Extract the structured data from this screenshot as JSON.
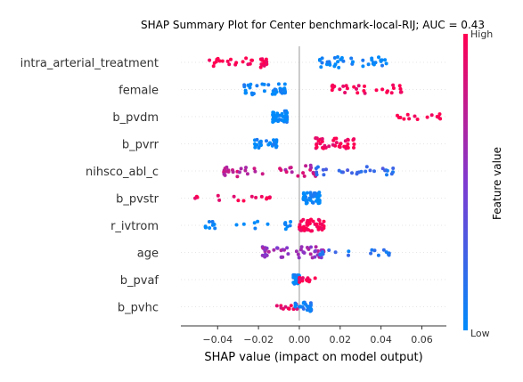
{
  "chart_data": {
    "type": "scatter",
    "title": "SHAP Summary Plot for Center benchmark-local-RIJ; AUC = 0.43",
    "xlabel": "SHAP value (impact on model output)",
    "xlim": [
      -0.058,
      0.072
    ],
    "xticks": [
      -0.04,
      -0.02,
      0.0,
      0.02,
      0.04,
      0.06
    ],
    "xtick_labels": [
      "−0.04",
      "−0.02",
      "0.00",
      "0.02",
      "0.04",
      "0.06"
    ],
    "colorbar": {
      "title": "Feature value",
      "high_label": "High",
      "low_label": "Low",
      "low_color": "#008bfb",
      "mid_color": "#7f3ad0",
      "high_color": "#ff0052"
    },
    "features": [
      {
        "name": "intra_arterial_treatment",
        "clusters": [
          {
            "x_min": -0.044,
            "x_max": -0.016,
            "color": 1.0,
            "count": 34
          },
          {
            "x_min": 0.01,
            "x_max": 0.043,
            "color": 0.0,
            "count": 38
          }
        ]
      },
      {
        "name": "female",
        "clusters": [
          {
            "x_min": -0.027,
            "x_max": -0.007,
            "color": 0.0,
            "count": 40
          },
          {
            "x_min": 0.016,
            "x_max": 0.05,
            "color": 1.0,
            "count": 30
          }
        ]
      },
      {
        "name": "b_pvdm",
        "clusters": [
          {
            "x_min": -0.013,
            "x_max": -0.006,
            "color": 0.0,
            "count": 45
          },
          {
            "x_min": 0.048,
            "x_max": 0.069,
            "color": 1.0,
            "count": 14
          }
        ]
      },
      {
        "name": "b_pvrr",
        "clusters": [
          {
            "x_min": -0.022,
            "x_max": -0.011,
            "color": 0.0,
            "count": 28
          },
          {
            "x_min": 0.008,
            "x_max": 0.027,
            "color": 1.0,
            "count": 40
          }
        ]
      },
      {
        "name": "nihsco_abl_c",
        "clusters": [
          {
            "x_min": -0.037,
            "x_max": 0.008,
            "color": 0.75,
            "count": 40
          },
          {
            "x_min": 0.008,
            "x_max": 0.046,
            "color": 0.2,
            "count": 28
          }
        ]
      },
      {
        "name": "b_pvstr",
        "clusters": [
          {
            "x_min": -0.051,
            "x_max": -0.014,
            "color": 1.0,
            "count": 16
          },
          {
            "x_min": 0.002,
            "x_max": 0.01,
            "color": 0.0,
            "count": 55
          }
        ]
      },
      {
        "name": "r_ivtrom",
        "clusters": [
          {
            "x_min": -0.046,
            "x_max": -0.004,
            "color": 0.0,
            "count": 24
          },
          {
            "x_min": 0.0,
            "x_max": 0.012,
            "color": 1.0,
            "count": 50
          }
        ]
      },
      {
        "name": "age",
        "clusters": [
          {
            "x_min": -0.018,
            "x_max": 0.012,
            "color": 0.6,
            "count": 50
          },
          {
            "x_min": 0.01,
            "x_max": 0.044,
            "color": 0.15,
            "count": 18
          }
        ]
      },
      {
        "name": "b_pvaf",
        "clusters": [
          {
            "x_min": -0.003,
            "x_max": 0.0,
            "color": 0.0,
            "count": 30
          },
          {
            "x_min": 0.0,
            "x_max": 0.008,
            "color": 1.0,
            "count": 14
          }
        ]
      },
      {
        "name": "b_pvhc",
        "clusters": [
          {
            "x_min": -0.011,
            "x_max": -0.001,
            "color": 0.9,
            "count": 12
          },
          {
            "x_min": -0.002,
            "x_max": 0.006,
            "color": 0.1,
            "count": 30
          }
        ]
      }
    ]
  }
}
